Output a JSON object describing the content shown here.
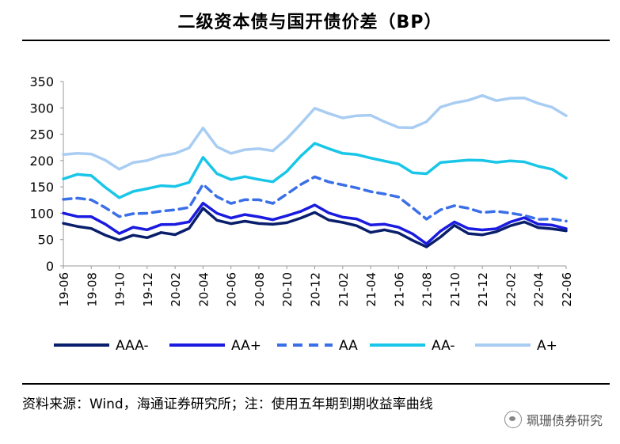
{
  "title": "二级资本债与国开债价差（BP）",
  "source": "资料来源：Wind，海通证券研究所；注：使用五年期到期收益率曲线",
  "watermark": "珮珊债券研究",
  "colors": {
    "AAA-": "#0a1f6b",
    "AA+": "#1a1ae0",
    "AA": "#3b6fe8",
    "AA-": "#19c6e8",
    "A+": "#a9cdf2"
  },
  "chart_data": {
    "type": "line",
    "title": "二级资本债与国开债价差（BP）",
    "xlabel": "",
    "ylabel": "",
    "ylim": [
      0,
      350
    ],
    "yticks": [
      0,
      50,
      100,
      150,
      200,
      250,
      300,
      350
    ],
    "xticks": [
      "19-06",
      "19-08",
      "19-10",
      "19-12",
      "20-02",
      "20-04",
      "20-06",
      "20-08",
      "20-10",
      "20-12",
      "21-02",
      "21-04",
      "21-06",
      "21-08",
      "21-10",
      "21-12",
      "22-02",
      "22-04",
      "22-06"
    ],
    "x": [
      "19-06",
      "19-07",
      "19-08",
      "19-09",
      "19-10",
      "19-11",
      "19-12",
      "20-01",
      "20-02",
      "20-03",
      "20-04",
      "20-05",
      "20-06",
      "20-07",
      "20-08",
      "20-09",
      "20-10",
      "20-11",
      "20-12",
      "21-01",
      "21-02",
      "21-03",
      "21-04",
      "21-05",
      "21-06",
      "21-07",
      "21-08",
      "21-09",
      "21-10",
      "21-11",
      "21-12",
      "22-01",
      "22-02",
      "22-03",
      "22-04",
      "22-05",
      "22-06"
    ],
    "legend_position": "bottom",
    "series": [
      {
        "name": "AAA-",
        "style": "solid",
        "values": [
          82,
          75,
          70,
          60,
          48,
          58,
          55,
          62,
          60,
          72,
          108,
          88,
          80,
          84,
          82,
          78,
          82,
          92,
          100,
          88,
          83,
          75,
          65,
          68,
          62,
          50,
          35,
          55,
          78,
          60,
          60,
          65,
          75,
          85,
          72,
          70,
          68
        ]
      },
      {
        "name": "AA+",
        "style": "solid",
        "values": [
          100,
          95,
          92,
          80,
          62,
          72,
          70,
          78,
          78,
          85,
          118,
          100,
          92,
          96,
          94,
          88,
          94,
          105,
          115,
          100,
          94,
          88,
          78,
          80,
          72,
          62,
          42,
          65,
          85,
          70,
          68,
          72,
          82,
          92,
          80,
          76,
          72
        ]
      },
      {
        "name": "AA",
        "style": "dashed",
        "values": [
          125,
          130,
          125,
          110,
          95,
          98,
          100,
          105,
          105,
          112,
          155,
          130,
          120,
          125,
          125,
          120,
          135,
          155,
          170,
          158,
          155,
          148,
          140,
          138,
          130,
          110,
          90,
          105,
          115,
          110,
          100,
          105,
          100,
          95,
          90,
          88,
          85
        ]
      },
      {
        "name": "AA-",
        "style": "solid",
        "values": [
          165,
          175,
          170,
          150,
          130,
          140,
          148,
          152,
          150,
          160,
          205,
          175,
          165,
          168,
          165,
          160,
          178,
          210,
          232,
          222,
          215,
          210,
          205,
          200,
          192,
          178,
          175,
          195,
          200,
          200,
          200,
          198,
          198,
          198,
          190,
          182,
          168
        ]
      },
      {
        "name": "A+",
        "style": "solid",
        "values": [
          210,
          215,
          212,
          200,
          185,
          195,
          200,
          210,
          212,
          225,
          262,
          225,
          215,
          220,
          222,
          220,
          240,
          270,
          300,
          288,
          282,
          285,
          285,
          275,
          262,
          262,
          275,
          300,
          310,
          315,
          322,
          315,
          318,
          318,
          310,
          300,
          285
        ]
      }
    ]
  }
}
